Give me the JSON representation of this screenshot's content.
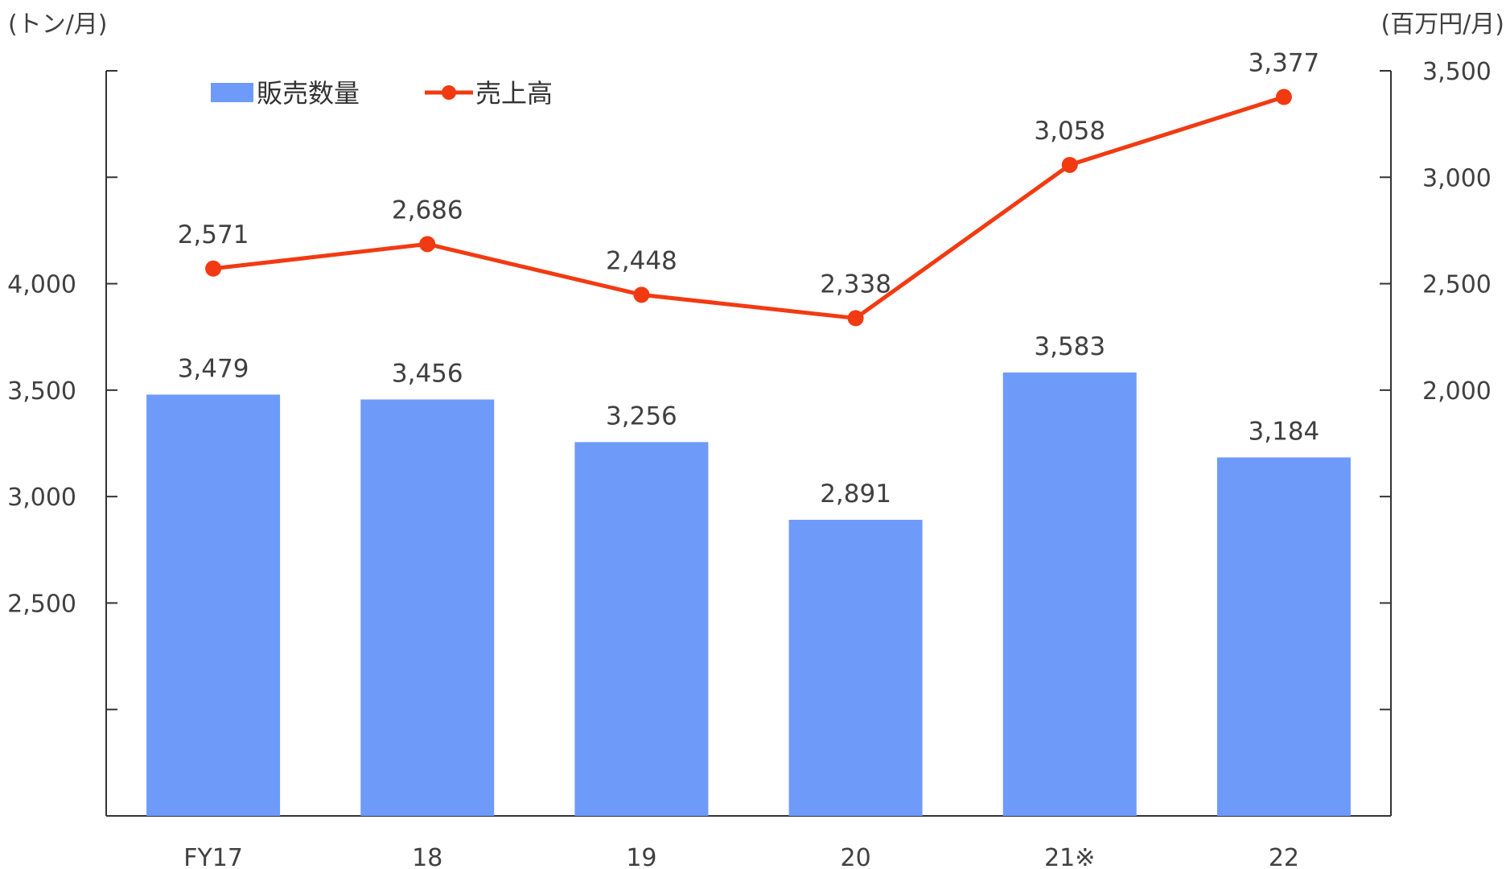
{
  "chart_data": {
    "type": "bar",
    "categories": [
      "FY17",
      "18",
      "19",
      "20",
      "21※",
      "22"
    ],
    "left_axis": {
      "unit_label": "(トン/月)",
      "ylim": [
        1500,
        5000
      ],
      "tick_values": [
        1500,
        2000,
        2500,
        3000,
        3500,
        4000,
        4500,
        5000
      ],
      "labeled_ticks": [
        "2,500",
        "3,000",
        "3,500",
        "4,000"
      ],
      "labeled_tick_values": [
        2500,
        3000,
        3500,
        4000
      ]
    },
    "right_axis": {
      "unit_label": "(百万円/月)",
      "ylim": [
        0,
        3500
      ],
      "tick_values": [
        0,
        500,
        1000,
        1500,
        2000,
        2500,
        3000,
        3500
      ],
      "labeled_ticks": [
        "2,000",
        "2,500",
        "3,000",
        "3,500"
      ],
      "labeled_tick_values": [
        2000,
        2500,
        3000,
        3500
      ]
    },
    "series": [
      {
        "name": "販売数量",
        "type": "bar",
        "axis": "left",
        "values": [
          3479,
          3456,
          3256,
          2891,
          3583,
          3184
        ],
        "labels": [
          "3,479",
          "3,456",
          "3,256",
          "2,891",
          "3,583",
          "3,184"
        ],
        "color": "#6e9bfa"
      },
      {
        "name": "売上高",
        "type": "line",
        "axis": "right",
        "values": [
          2571,
          2686,
          2448,
          2338,
          3058,
          3377
        ],
        "labels": [
          "2,571",
          "2,686",
          "2,448",
          "2,338",
          "3,058",
          "3,377"
        ],
        "color": "#f23a12"
      }
    ],
    "legend_position": "top-left",
    "grid": false
  }
}
